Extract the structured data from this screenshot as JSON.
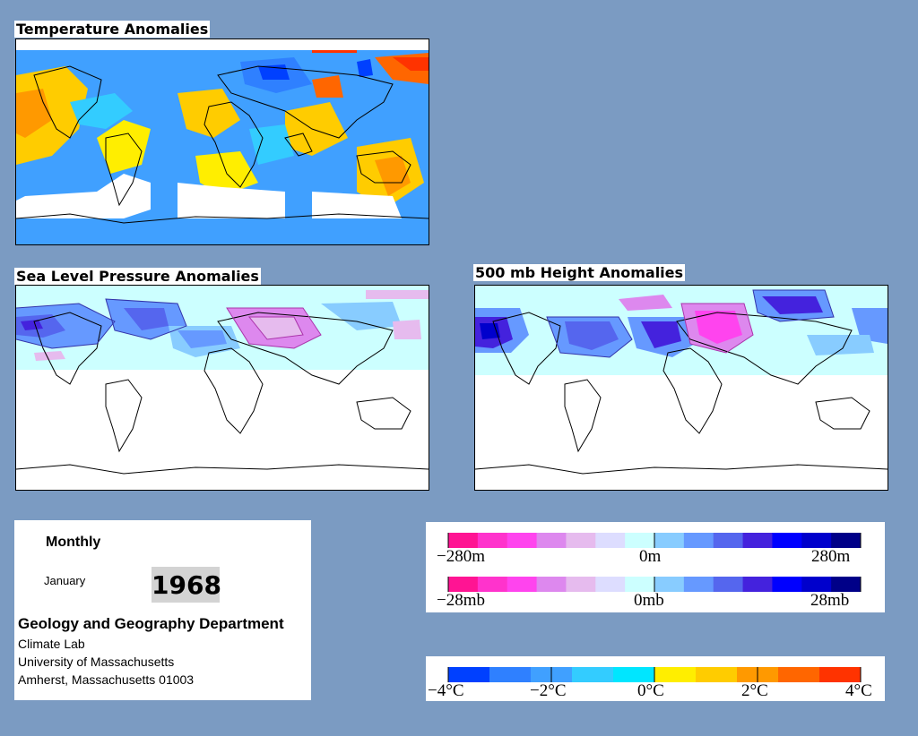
{
  "panels": {
    "temperature": {
      "title": "Temperature Anomalies"
    },
    "slp": {
      "title": "Sea Level Pressure Anomalies"
    },
    "height500": {
      "title": "500 mb Height Anomalies"
    }
  },
  "info": {
    "period_label": "Monthly",
    "month": "January",
    "year": "1968",
    "department": "Geology and Geography Department",
    "lab": "Climate Lab",
    "university": "University of Massachusetts",
    "address": "Amherst, Massachusetts 01003"
  },
  "height_scale": {
    "min_label": "−280m",
    "mid_label": "0m",
    "max_label": "280m"
  },
  "pressure_scale": {
    "min_label": "−28mb",
    "mid_label": "0mb",
    "max_label": "28mb"
  },
  "temp_scale": {
    "labels": [
      "−4°C",
      "−2°C",
      "0°C",
      "2°C",
      "4°C"
    ]
  },
  "colors": {
    "background": "#7b9bc2",
    "anomaly_ramp": [
      "#ff1493",
      "#ff33cc",
      "#ff44ee",
      "#dd88ee",
      "#e6bbee",
      "#ddddff",
      "#ccffff",
      "#88ccff",
      "#6699ff",
      "#5566ee",
      "#4422dd",
      "#0000ff",
      "#0000cc",
      "#000088"
    ],
    "temp_ramp": [
      "#0040ff",
      "#2f80ff",
      "#40a0ff",
      "#33ccff",
      "#00e6ff",
      "#ffee00",
      "#ffcc00",
      "#ff9900",
      "#ff6600",
      "#ff3300"
    ]
  }
}
